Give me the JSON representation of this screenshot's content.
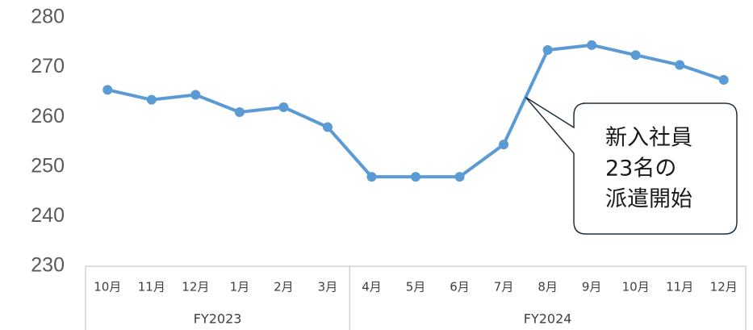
{
  "chart_data": {
    "type": "line",
    "categories": [
      "10月",
      "11月",
      "12月",
      "1月",
      "2月",
      "3月",
      "4月",
      "5月",
      "6月",
      "7月",
      "8月",
      "9月",
      "10月",
      "11月",
      "12月"
    ],
    "x_groups": [
      {
        "label": "FY2023",
        "span": 6
      },
      {
        "label": "FY2024",
        "span": 9
      }
    ],
    "series": [
      {
        "name": null,
        "color": "#5b9bd5",
        "values": [
          265.5,
          263.5,
          264.5,
          261,
          262,
          258,
          248,
          248,
          248,
          254.5,
          273.5,
          274.5,
          272.5,
          270.5,
          267.5
        ]
      }
    ],
    "ylim": [
      230,
      280
    ],
    "yticks": [
      230,
      240,
      250,
      260,
      270,
      280
    ],
    "grid": false,
    "annotation": {
      "lines": [
        "新入社員",
        "23名の",
        "派遣開始"
      ],
      "target": 9.5
    }
  }
}
